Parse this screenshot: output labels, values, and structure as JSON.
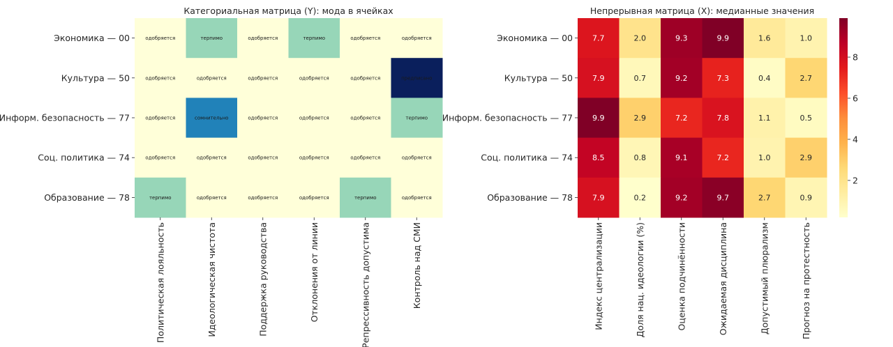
{
  "chart_data": [
    {
      "type": "heatmap",
      "title": "Категориальная матрица (Y): мода в ячейках",
      "rows": [
        "Экономика — 00",
        "Культура — 50",
        "Информ. безопасность — 77",
        "Соц. политика — 74",
        "Образование — 78"
      ],
      "columns": [
        "Политическая лояльность",
        "Идеологическая чистота",
        "Поддержка руководства",
        "Отклонения от линии",
        "Репрессивность допустима",
        "Контроль над СМИ"
      ],
      "values": [
        [
          "одобряется",
          "терпимо",
          "одобряется",
          "терпимо",
          "одобряется",
          "одобряется"
        ],
        [
          "одобряется",
          "одобряется",
          "одобряется",
          "одобряется",
          "одобряется",
          "предписано"
        ],
        [
          "одобряется",
          "сомнительно",
          "одобряется",
          "одобряется",
          "одобряется",
          "терпимо"
        ],
        [
          "одобряется",
          "одобряется",
          "одобряется",
          "одобряется",
          "одобряется",
          "одобряется"
        ],
        [
          "терпимо",
          "одобряется",
          "одобряется",
          "одобряется",
          "терпимо",
          "одобряется"
        ]
      ],
      "category_colors": {
        "одобряется": "#ffffd9",
        "терпимо": "#97d6b8",
        "сомнительно": "#2182b9",
        "предписано": "#0a1f5c"
      },
      "category_text_colors": {
        "одобряется": "#1a1a1a",
        "терпимо": "#1a1a1a",
        "сомнительно": "#1a1a1a",
        "предписано": "#1a1a1a"
      },
      "grid": false
    },
    {
      "type": "heatmap",
      "title": "Непрерывная матрица (X): медианные значения",
      "rows": [
        "Экономика — 00",
        "Культура — 50",
        "Информ. безопасность — 77",
        "Соц. политика — 74",
        "Образование — 78"
      ],
      "columns": [
        "Индекс централизации",
        "Доля нац. идеологии (%)",
        "Оценка подчинённости",
        "Ожидаемая дисциплина",
        "Допустимый плюрализм",
        "Прогноз на протестность"
      ],
      "values": [
        [
          7.7,
          2.0,
          9.3,
          9.9,
          1.6,
          1.0
        ],
        [
          7.9,
          0.7,
          9.2,
          7.3,
          0.4,
          2.7
        ],
        [
          9.9,
          2.9,
          7.2,
          7.8,
          1.1,
          0.5
        ],
        [
          8.5,
          0.8,
          9.1,
          7.2,
          1.0,
          2.9
        ],
        [
          7.9,
          0.2,
          9.2,
          9.7,
          2.7,
          0.9
        ]
      ],
      "value_labels": [
        [
          "7.7",
          "2.0",
          "9.3",
          "9.9",
          "1.6",
          "1.0"
        ],
        [
          "7.9",
          "0.7",
          "9.2",
          "7.3",
          "0.4",
          "2.7"
        ],
        [
          "9.9",
          "2.9",
          "7.2",
          "7.8",
          "1.1",
          "0.5"
        ],
        [
          "8.5",
          "0.8",
          "9.1",
          "7.2",
          "1.0",
          "2.9"
        ],
        [
          "7.9",
          "0.2",
          "9.2",
          "9.7",
          "2.7",
          "0.9"
        ]
      ],
      "colormap": "YlOrRd",
      "colormap_stops": [
        "#ffffcc",
        "#ffeda0",
        "#fed976",
        "#feb24c",
        "#fd8d3c",
        "#fc4e2a",
        "#e31a1c",
        "#bd0026",
        "#800026"
      ],
      "vmin": 0.2,
      "vmax": 9.9,
      "colorbar_ticks": [
        2,
        4,
        6,
        8
      ],
      "colorbar_tick_labels": [
        "2",
        "4",
        "6",
        "8"
      ],
      "grid": false
    }
  ]
}
